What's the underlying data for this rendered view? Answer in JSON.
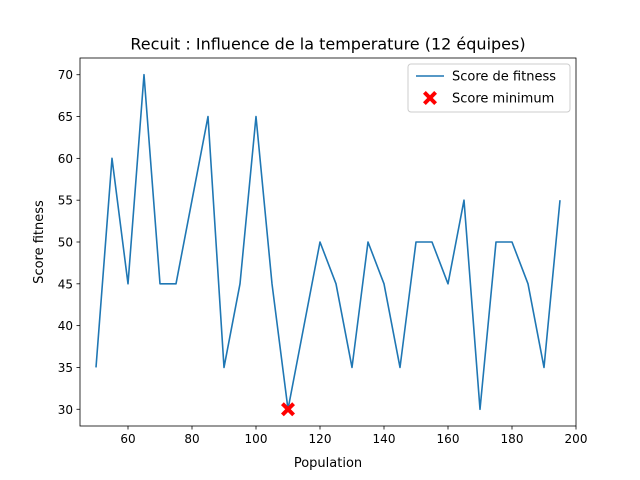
{
  "chart_data": {
    "type": "line",
    "title": "Recuit : Influence de la temperature (12 équipes)",
    "xlabel": "Population",
    "ylabel": "Score fitness",
    "xlim": [
      45,
      200
    ],
    "ylim": [
      28,
      72
    ],
    "x_ticks": [
      60,
      80,
      100,
      120,
      140,
      160,
      180,
      200
    ],
    "y_ticks": [
      30,
      35,
      40,
      45,
      50,
      55,
      60,
      65,
      70
    ],
    "grid": false,
    "legend_position": "top-right",
    "series": [
      {
        "name": "Score de fitness",
        "color": "#1f77b4",
        "x": [
          50,
          55,
          60,
          65,
          70,
          75,
          80,
          85,
          90,
          95,
          100,
          105,
          110,
          115,
          120,
          125,
          130,
          135,
          140,
          145,
          150,
          155,
          160,
          165,
          170,
          175,
          180,
          185,
          190,
          195
        ],
        "y": [
          35,
          60,
          45,
          70,
          45,
          45,
          55,
          65,
          35,
          45,
          65,
          45,
          30,
          40,
          50,
          45,
          35,
          50,
          45,
          35,
          50,
          50,
          45,
          55,
          30,
          50,
          50,
          45,
          35,
          55
        ]
      }
    ],
    "markers": [
      {
        "name": "Score minimum",
        "color": "#ff0000",
        "symbol": "X",
        "x": 110,
        "y": 30
      }
    ]
  }
}
